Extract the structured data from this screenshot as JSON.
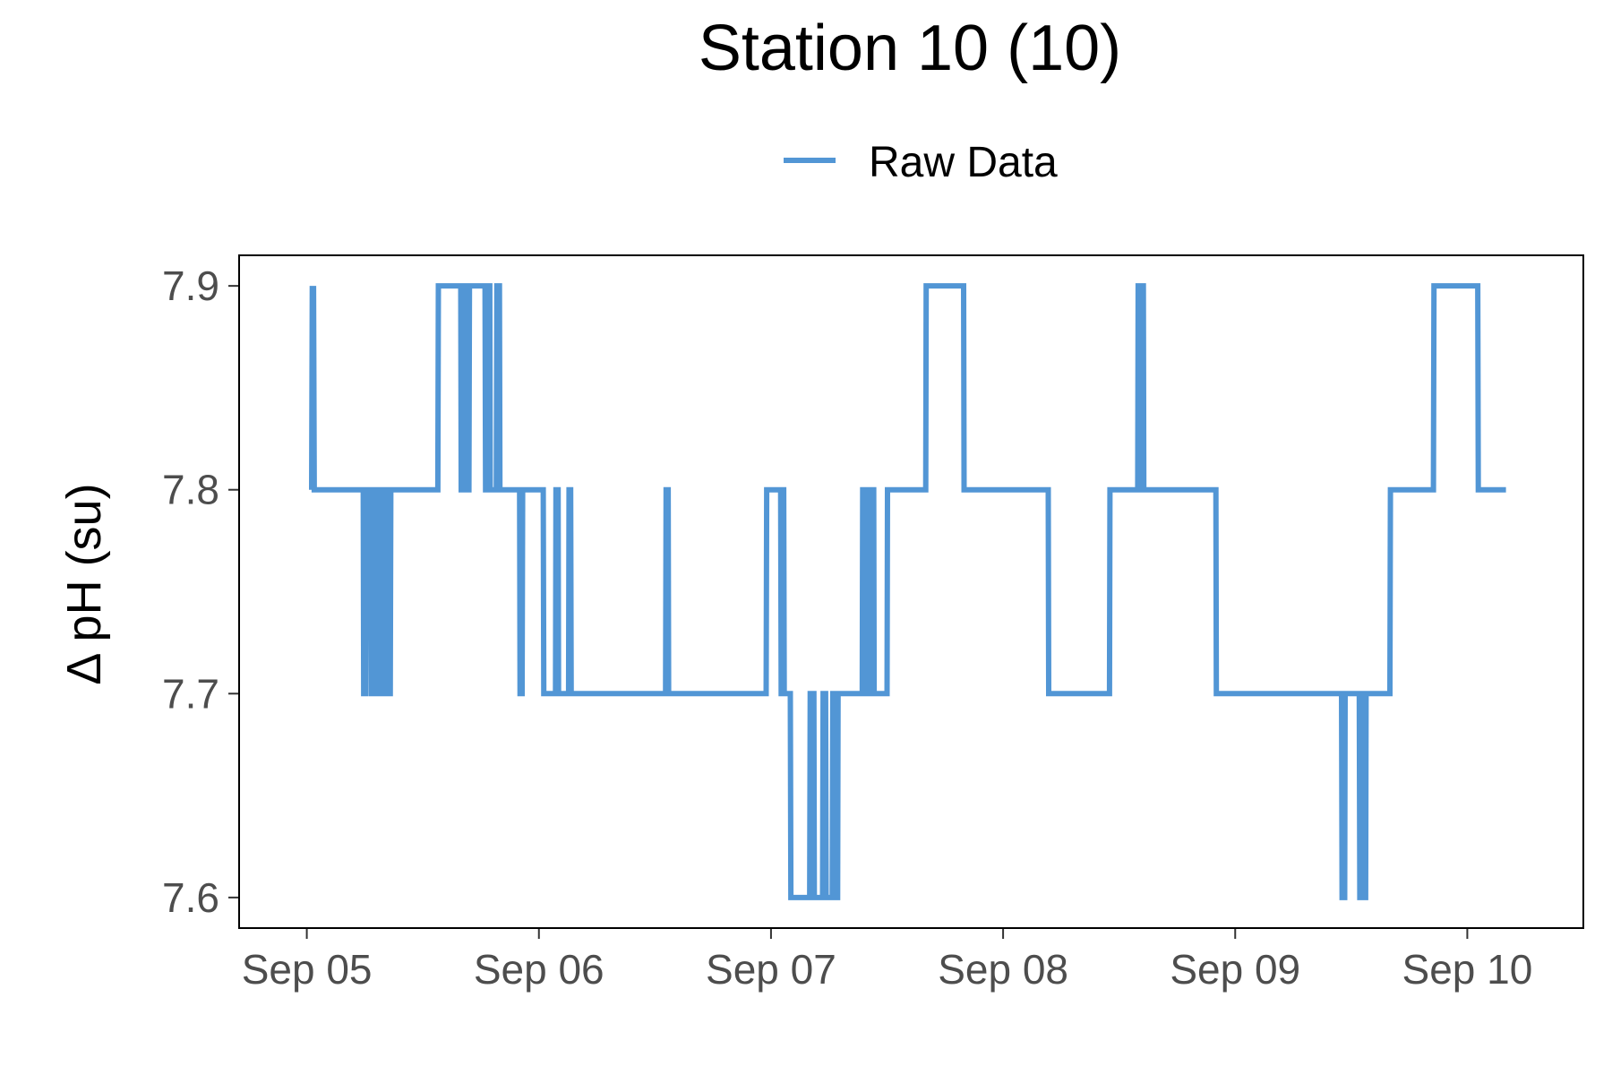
{
  "chart_data": {
    "type": "line",
    "title": "Station 10 (10)",
    "xlabel": "",
    "ylabel": "Δ pH (su)",
    "x_tick_labels": [
      "Sep 05",
      "Sep 06",
      "Sep 07",
      "Sep 08",
      "Sep 09",
      "Sep 10"
    ],
    "y_tick_labels": [
      "7.6",
      "7.7",
      "7.8",
      "7.9"
    ],
    "x_range": [
      "2022-09-04 17:00",
      "2022-09-10 12:00"
    ],
    "ylim": [
      7.585,
      7.915
    ],
    "legend_position": "top",
    "grid": false,
    "series": [
      {
        "name": "Raw Data",
        "color": "#5296d5",
        "points": [
          [
            "2022-09-05 00:30",
            7.8
          ],
          [
            "2022-09-05 00:34",
            7.9
          ],
          [
            "2022-09-05 00:38",
            7.8
          ],
          [
            "2022-09-05 00:42",
            7.9
          ],
          [
            "2022-09-05 00:46",
            7.8
          ],
          [
            "2022-09-05 05:50",
            7.8
          ],
          [
            "2022-09-05 05:53",
            7.7
          ],
          [
            "2022-09-05 06:06",
            7.7
          ],
          [
            "2022-09-05 06:09",
            7.8
          ],
          [
            "2022-09-05 06:38",
            7.8
          ],
          [
            "2022-09-05 06:41",
            7.7
          ],
          [
            "2022-09-05 07:02",
            7.7
          ],
          [
            "2022-09-05 07:05",
            7.8
          ],
          [
            "2022-09-05 07:12",
            7.8
          ],
          [
            "2022-09-05 07:15",
            7.7
          ],
          [
            "2022-09-05 07:34",
            7.7
          ],
          [
            "2022-09-05 07:37",
            7.8
          ],
          [
            "2022-09-05 07:44",
            7.8
          ],
          [
            "2022-09-05 07:47",
            7.7
          ],
          [
            "2022-09-05 08:06",
            7.7
          ],
          [
            "2022-09-05 08:09",
            7.8
          ],
          [
            "2022-09-05 08:19",
            7.8
          ],
          [
            "2022-09-05 08:22",
            7.7
          ],
          [
            "2022-09-05 08:38",
            7.7
          ],
          [
            "2022-09-05 08:41",
            7.8
          ],
          [
            "2022-09-05 13:33",
            7.8
          ],
          [
            "2022-09-05 13:36",
            7.9
          ],
          [
            "2022-09-05 15:55",
            7.9
          ],
          [
            "2022-09-05 15:58",
            7.8
          ],
          [
            "2022-09-05 16:24",
            7.8
          ],
          [
            "2022-09-05 16:27",
            7.9
          ],
          [
            "2022-09-05 16:33",
            7.9
          ],
          [
            "2022-09-05 16:36",
            7.8
          ],
          [
            "2022-09-05 16:46",
            7.8
          ],
          [
            "2022-09-05 16:49",
            7.9
          ],
          [
            "2022-09-05 18:26",
            7.9
          ],
          [
            "2022-09-05 18:29",
            7.8
          ],
          [
            "2022-09-05 18:42",
            7.8
          ],
          [
            "2022-09-05 18:45",
            7.9
          ],
          [
            "2022-09-05 18:55",
            7.9
          ],
          [
            "2022-09-05 18:58",
            7.8
          ],
          [
            "2022-09-05 19:36",
            7.8
          ],
          [
            "2022-09-05 19:39",
            7.9
          ],
          [
            "2022-09-05 19:55",
            7.9
          ],
          [
            "2022-09-05 19:58",
            7.8
          ],
          [
            "2022-09-05 22:00",
            7.8
          ],
          [
            "2022-09-05 22:03",
            7.7
          ],
          [
            "2022-09-05 22:16",
            7.7
          ],
          [
            "2022-09-05 22:19",
            7.8
          ],
          [
            "2022-09-06 00:27",
            7.8
          ],
          [
            "2022-09-06 00:30",
            7.7
          ],
          [
            "2022-09-06 01:43",
            7.7
          ],
          [
            "2022-09-06 01:46",
            7.8
          ],
          [
            "2022-09-06 01:59",
            7.8
          ],
          [
            "2022-09-06 02:02",
            7.7
          ],
          [
            "2022-09-06 03:04",
            7.7
          ],
          [
            "2022-09-06 03:07",
            7.8
          ],
          [
            "2022-09-06 03:17",
            7.8
          ],
          [
            "2022-09-06 03:20",
            7.7
          ],
          [
            "2022-09-06 13:06",
            7.7
          ],
          [
            "2022-09-06 13:09",
            7.8
          ],
          [
            "2022-09-06 13:22",
            7.8
          ],
          [
            "2022-09-06 13:25",
            7.7
          ],
          [
            "2022-09-06 23:30",
            7.7
          ],
          [
            "2022-09-06 23:33",
            7.8
          ],
          [
            "2022-09-07 01:00",
            7.8
          ],
          [
            "2022-09-07 01:03",
            7.7
          ],
          [
            "2022-09-07 01:09",
            7.7
          ],
          [
            "2022-09-07 01:12",
            7.8
          ],
          [
            "2022-09-07 01:19",
            7.8
          ],
          [
            "2022-09-07 01:22",
            7.7
          ],
          [
            "2022-09-07 02:00",
            7.7
          ],
          [
            "2022-09-07 02:03",
            7.6
          ],
          [
            "2022-09-07 04:00",
            7.6
          ],
          [
            "2022-09-07 04:03",
            7.7
          ],
          [
            "2022-09-07 04:26",
            7.7
          ],
          [
            "2022-09-07 04:29",
            7.6
          ],
          [
            "2022-09-07 05:20",
            7.6
          ],
          [
            "2022-09-07 05:23",
            7.7
          ],
          [
            "2022-09-07 05:39",
            7.7
          ],
          [
            "2022-09-07 05:42",
            7.6
          ],
          [
            "2022-09-07 06:20",
            7.6
          ],
          [
            "2022-09-07 06:23",
            7.7
          ],
          [
            "2022-09-07 06:34",
            7.7
          ],
          [
            "2022-09-07 06:37",
            7.6
          ],
          [
            "2022-09-07 06:53",
            7.6
          ],
          [
            "2022-09-07 06:56",
            7.7
          ],
          [
            "2022-09-07 09:26",
            7.7
          ],
          [
            "2022-09-07 09:29",
            7.8
          ],
          [
            "2022-09-07 09:45",
            7.8
          ],
          [
            "2022-09-07 09:48",
            7.7
          ],
          [
            "2022-09-07 10:01",
            7.7
          ],
          [
            "2022-09-07 10:04",
            7.8
          ],
          [
            "2022-09-07 10:11",
            7.8
          ],
          [
            "2022-09-07 10:14",
            7.7
          ],
          [
            "2022-09-07 10:27",
            7.7
          ],
          [
            "2022-09-07 10:30",
            7.8
          ],
          [
            "2022-09-07 10:37",
            7.8
          ],
          [
            "2022-09-07 10:40",
            7.7
          ],
          [
            "2022-09-07 12:00",
            7.7
          ],
          [
            "2022-09-07 12:03",
            7.8
          ],
          [
            "2022-09-07 16:00",
            7.8
          ],
          [
            "2022-09-07 16:03",
            7.9
          ],
          [
            "2022-09-07 19:55",
            7.9
          ],
          [
            "2022-09-07 19:58",
            7.8
          ],
          [
            "2022-09-08 04:40",
            7.8
          ],
          [
            "2022-09-08 04:43",
            7.7
          ],
          [
            "2022-09-08 11:00",
            7.7
          ],
          [
            "2022-09-08 11:03",
            7.8
          ],
          [
            "2022-09-08 13:55",
            7.8
          ],
          [
            "2022-09-08 13:58",
            7.9
          ],
          [
            "2022-09-08 14:08",
            7.9
          ],
          [
            "2022-09-08 14:11",
            7.8
          ],
          [
            "2022-09-08 14:21",
            7.8
          ],
          [
            "2022-09-08 14:24",
            7.9
          ],
          [
            "2022-09-08 14:30",
            7.9
          ],
          [
            "2022-09-08 14:33",
            7.8
          ],
          [
            "2022-09-08 22:00",
            7.8
          ],
          [
            "2022-09-08 22:03",
            7.7
          ],
          [
            "2022-09-09 11:00",
            7.7
          ],
          [
            "2022-09-09 11:03",
            7.6
          ],
          [
            "2022-09-09 11:19",
            7.6
          ],
          [
            "2022-09-09 11:22",
            7.7
          ],
          [
            "2022-09-09 12:50",
            7.7
          ],
          [
            "2022-09-09 12:53",
            7.6
          ],
          [
            "2022-09-09 13:03",
            7.6
          ],
          [
            "2022-09-09 13:06",
            7.7
          ],
          [
            "2022-09-09 13:16",
            7.7
          ],
          [
            "2022-09-09 13:19",
            7.6
          ],
          [
            "2022-09-09 13:29",
            7.6
          ],
          [
            "2022-09-09 13:32",
            7.7
          ],
          [
            "2022-09-09 16:00",
            7.7
          ],
          [
            "2022-09-09 16:03",
            7.8
          ],
          [
            "2022-09-09 20:30",
            7.8
          ],
          [
            "2022-09-09 20:33",
            7.9
          ],
          [
            "2022-09-10 01:05",
            7.9
          ],
          [
            "2022-09-10 01:08",
            7.8
          ],
          [
            "2022-09-10 04:00",
            7.8
          ]
        ]
      }
    ]
  }
}
